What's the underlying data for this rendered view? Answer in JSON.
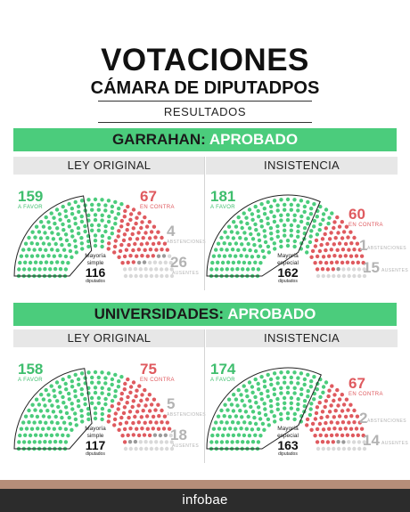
{
  "header": {
    "title": "VOTACIONES",
    "subtitle": "CÁMARA DE DIPUTADPOS",
    "results": "RESULTADOS"
  },
  "sections": [
    {
      "name": "GARRAHAN:",
      "status": "APROBADO",
      "panels": [
        {
          "label": "LEY ORIGINAL",
          "favor": "159",
          "favor_label": "A FAVOR",
          "contra": "67",
          "contra_label": "EN CONTRA",
          "abst": "4",
          "abst_label": "ABSTENCIONES",
          "ausentes": "26",
          "ausentes_label": "AUSENTES",
          "maj_line1": "Mayoría",
          "maj_line2": "simple",
          "maj_num": "116",
          "maj_unit": "diputados"
        },
        {
          "label": "INSISTENCIA",
          "favor": "181",
          "favor_label": "A FAVOR",
          "contra": "60",
          "contra_label": "EN CONTRA",
          "abst": "1",
          "abst_label": "ABSTENCIONES",
          "ausentes": "15",
          "ausentes_label": "AUSENTES",
          "maj_line1": "Mayoría",
          "maj_line2": "especial",
          "maj_num": "162",
          "maj_unit": "diputados"
        }
      ]
    },
    {
      "name": "UNIVERSIDADES:",
      "status": "APROBADO",
      "panels": [
        {
          "label": "LEY ORIGINAL",
          "favor": "158",
          "favor_label": "A FAVOR",
          "contra": "75",
          "contra_label": "EN CONTRA",
          "abst": "5",
          "abst_label": "ABSTENCIONES",
          "ausentes": "18",
          "ausentes_label": "AUSENTES",
          "maj_line1": "Mayoría",
          "maj_line2": "simple",
          "maj_num": "117",
          "maj_unit": "diputados"
        },
        {
          "label": "INSISTENCIA",
          "favor": "174",
          "favor_label": "A FAVOR",
          "contra": "67",
          "contra_label": "EN CONTRA",
          "abst": "2",
          "abst_label": "ABSTENCIONES",
          "ausentes": "14",
          "ausentes_label": "AUSENTES",
          "maj_line1": "Mayoría",
          "maj_line2": "especial",
          "maj_num": "163",
          "maj_unit": "diputados"
        }
      ]
    }
  ],
  "footer": {
    "brand": "infobae"
  },
  "colors": {
    "favor": "#4bcc7c",
    "contra": "#df5a5f",
    "abstencion": "#9a9a9a",
    "ausente": "#d9d9d9",
    "banner": "#4bcc7c",
    "footer": "#2c2c2c",
    "stripe": "#b58e79"
  }
}
